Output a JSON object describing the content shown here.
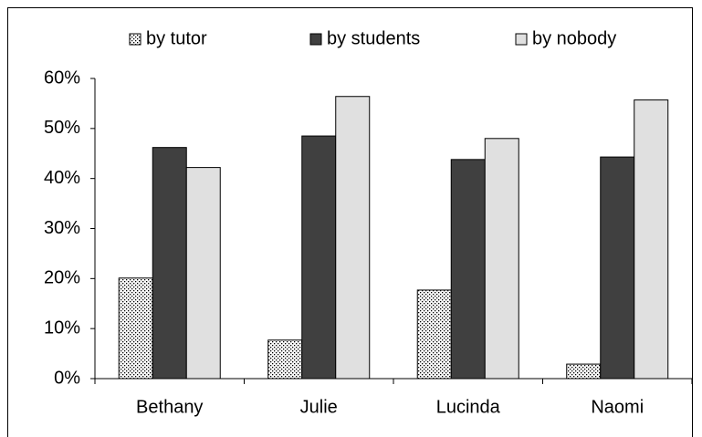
{
  "chart_data": {
    "type": "bar",
    "categories": [
      "Bethany",
      "Julie",
      "Lucinda",
      "Naomi"
    ],
    "series": [
      {
        "name": "by tutor",
        "color": "#ffffff",
        "pattern": "dots",
        "values": [
          20.1,
          7.7,
          17.7,
          2.9
        ]
      },
      {
        "name": "by students",
        "color": "#404040",
        "values": [
          46.2,
          48.5,
          43.8,
          44.3
        ]
      },
      {
        "name": "by nobody",
        "color": "#e0e0e0",
        "values": [
          42.2,
          56.4,
          48.0,
          55.7
        ]
      }
    ],
    "ylim": [
      0,
      60
    ],
    "yticks": [
      {
        "value": 0,
        "label": "0%"
      },
      {
        "value": 10,
        "label": "10%"
      },
      {
        "value": 20,
        "label": "20%"
      },
      {
        "value": 30,
        "label": "30%"
      },
      {
        "value": 40,
        "label": "40%"
      },
      {
        "value": 50,
        "label": "50%"
      },
      {
        "value": 60,
        "label": "60%"
      }
    ],
    "legend": "top",
    "grid": false
  }
}
